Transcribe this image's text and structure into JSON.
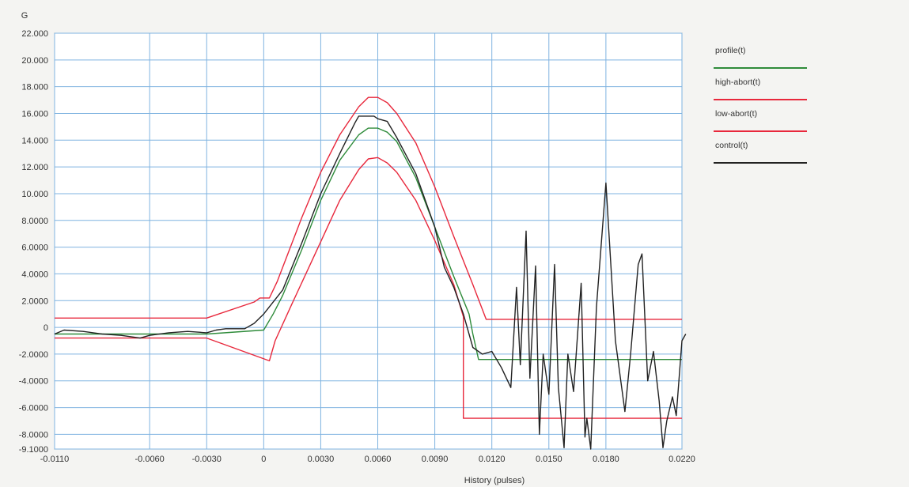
{
  "chart_data": {
    "type": "line",
    "title": "",
    "ylabel": "G",
    "xlabel": "History (pulses)",
    "xlim": [
      -0.011,
      0.022
    ],
    "ylim": [
      -9.1,
      22.0
    ],
    "x_ticks": [
      "-0.0110",
      "-0.0060",
      "-0.0030",
      "0",
      "0.0030",
      "0.0060",
      "0.0090",
      "0.0120",
      "0.0150",
      "0.0180",
      "0.0220"
    ],
    "y_ticks": [
      "22.000",
      "20.000",
      "18.000",
      "16.000",
      "14.000",
      "12.000",
      "10.000",
      "8.0000",
      "6.0000",
      "4.0000",
      "2.0000",
      "0",
      "-2.0000",
      "-4.0000",
      "-6.0000",
      "-8.0000",
      "-9.1000"
    ],
    "grid": true,
    "legend_position": "right",
    "series": [
      {
        "name": "profile(t)",
        "color": "#2e8b3a",
        "points": [
          [
            -0.011,
            -0.5
          ],
          [
            -0.003,
            -0.5
          ],
          [
            0.0,
            -0.2
          ],
          [
            0.0005,
            1.0
          ],
          [
            0.001,
            2.4
          ],
          [
            0.002,
            5.8
          ],
          [
            0.003,
            9.5
          ],
          [
            0.004,
            12.5
          ],
          [
            0.005,
            14.4
          ],
          [
            0.0055,
            14.9
          ],
          [
            0.006,
            14.9
          ],
          [
            0.0065,
            14.6
          ],
          [
            0.007,
            13.9
          ],
          [
            0.008,
            11.2
          ],
          [
            0.009,
            7.5
          ],
          [
            0.01,
            3.8
          ],
          [
            0.0108,
            1.0
          ],
          [
            0.011,
            -0.5
          ],
          [
            0.0113,
            -2.4
          ],
          [
            0.0118,
            -2.4
          ],
          [
            0.022,
            -2.4
          ]
        ]
      },
      {
        "name": "high-abort(t)",
        "color": "#e8283c",
        "points": [
          [
            -0.011,
            0.7
          ],
          [
            -0.003,
            0.7
          ],
          [
            -0.0005,
            1.9
          ],
          [
            -0.0002,
            2.2
          ],
          [
            0.0003,
            2.2
          ],
          [
            0.0007,
            3.4
          ],
          [
            0.002,
            8.2
          ],
          [
            0.003,
            11.6
          ],
          [
            0.004,
            14.4
          ],
          [
            0.005,
            16.5
          ],
          [
            0.0055,
            17.2
          ],
          [
            0.006,
            17.2
          ],
          [
            0.0065,
            16.8
          ],
          [
            0.007,
            16.0
          ],
          [
            0.008,
            13.8
          ],
          [
            0.009,
            10.5
          ],
          [
            0.01,
            6.8
          ],
          [
            0.011,
            3.2
          ],
          [
            0.0117,
            0.6
          ],
          [
            0.022,
            0.6
          ]
        ]
      },
      {
        "name": "low-abort(t)",
        "color": "#e8283c",
        "points": [
          [
            -0.011,
            -0.8
          ],
          [
            -0.003,
            -0.8
          ],
          [
            0.0003,
            -2.5
          ],
          [
            0.0006,
            -1.0
          ],
          [
            0.0015,
            1.8
          ],
          [
            0.003,
            6.4
          ],
          [
            0.004,
            9.5
          ],
          [
            0.005,
            11.8
          ],
          [
            0.0055,
            12.6
          ],
          [
            0.006,
            12.7
          ],
          [
            0.0065,
            12.3
          ],
          [
            0.007,
            11.6
          ],
          [
            0.008,
            9.5
          ],
          [
            0.009,
            6.5
          ],
          [
            0.01,
            3.2
          ],
          [
            0.0105,
            0.8
          ],
          [
            0.0105,
            -6.8
          ],
          [
            0.022,
            -6.8
          ]
        ]
      },
      {
        "name": "control(t)",
        "color": "#222222",
        "points": [
          [
            -0.011,
            -0.5
          ],
          [
            -0.0105,
            -0.2
          ],
          [
            -0.0095,
            -0.3
          ],
          [
            -0.0085,
            -0.5
          ],
          [
            -0.0075,
            -0.6
          ],
          [
            -0.0065,
            -0.8
          ],
          [
            -0.006,
            -0.6
          ],
          [
            -0.005,
            -0.4
          ],
          [
            -0.004,
            -0.3
          ],
          [
            -0.003,
            -0.4
          ],
          [
            -0.0025,
            -0.2
          ],
          [
            -0.002,
            -0.1
          ],
          [
            -0.001,
            -0.1
          ],
          [
            -0.0005,
            0.3
          ],
          [
            0.0,
            1.0
          ],
          [
            0.001,
            2.8
          ],
          [
            0.002,
            6.3
          ],
          [
            0.003,
            10.0
          ],
          [
            0.004,
            13.0
          ],
          [
            0.0048,
            15.3
          ],
          [
            0.005,
            15.8
          ],
          [
            0.0058,
            15.8
          ],
          [
            0.006,
            15.6
          ],
          [
            0.0065,
            15.4
          ],
          [
            0.007,
            14.2
          ],
          [
            0.008,
            11.5
          ],
          [
            0.009,
            7.5
          ],
          [
            0.0095,
            4.5
          ],
          [
            0.01,
            3.0
          ],
          [
            0.0105,
            1.0
          ],
          [
            0.011,
            -1.5
          ],
          [
            0.0115,
            -2.0
          ],
          [
            0.012,
            -1.8
          ],
          [
            0.0125,
            -3.0
          ],
          [
            0.013,
            -4.5
          ],
          [
            0.0133,
            3.0
          ],
          [
            0.0135,
            -2.8
          ],
          [
            0.0138,
            7.2
          ],
          [
            0.014,
            -3.8
          ],
          [
            0.0143,
            4.6
          ],
          [
            0.0145,
            -8.0
          ],
          [
            0.0147,
            -2.0
          ],
          [
            0.015,
            -5.0
          ],
          [
            0.0153,
            4.7
          ],
          [
            0.0155,
            -4.5
          ],
          [
            0.0158,
            -9.0
          ],
          [
            0.016,
            -2.0
          ],
          [
            0.0163,
            -4.8
          ],
          [
            0.0167,
            3.3
          ],
          [
            0.0169,
            -8.2
          ],
          [
            0.017,
            -6.8
          ],
          [
            0.0172,
            -9.1
          ],
          [
            0.0175,
            1.5
          ],
          [
            0.018,
            10.8
          ],
          [
            0.0185,
            -1.0
          ],
          [
            0.019,
            -6.3
          ],
          [
            0.0193,
            -2.0
          ],
          [
            0.0197,
            4.7
          ],
          [
            0.0199,
            5.5
          ],
          [
            0.0202,
            -4.0
          ],
          [
            0.0205,
            -1.8
          ],
          [
            0.0208,
            -5.5
          ],
          [
            0.021,
            -9.0
          ],
          [
            0.0212,
            -7.0
          ],
          [
            0.0215,
            -5.2
          ],
          [
            0.0217,
            -6.6
          ],
          [
            0.022,
            -1.0
          ],
          [
            0.0222,
            -0.5
          ]
        ]
      }
    ]
  }
}
